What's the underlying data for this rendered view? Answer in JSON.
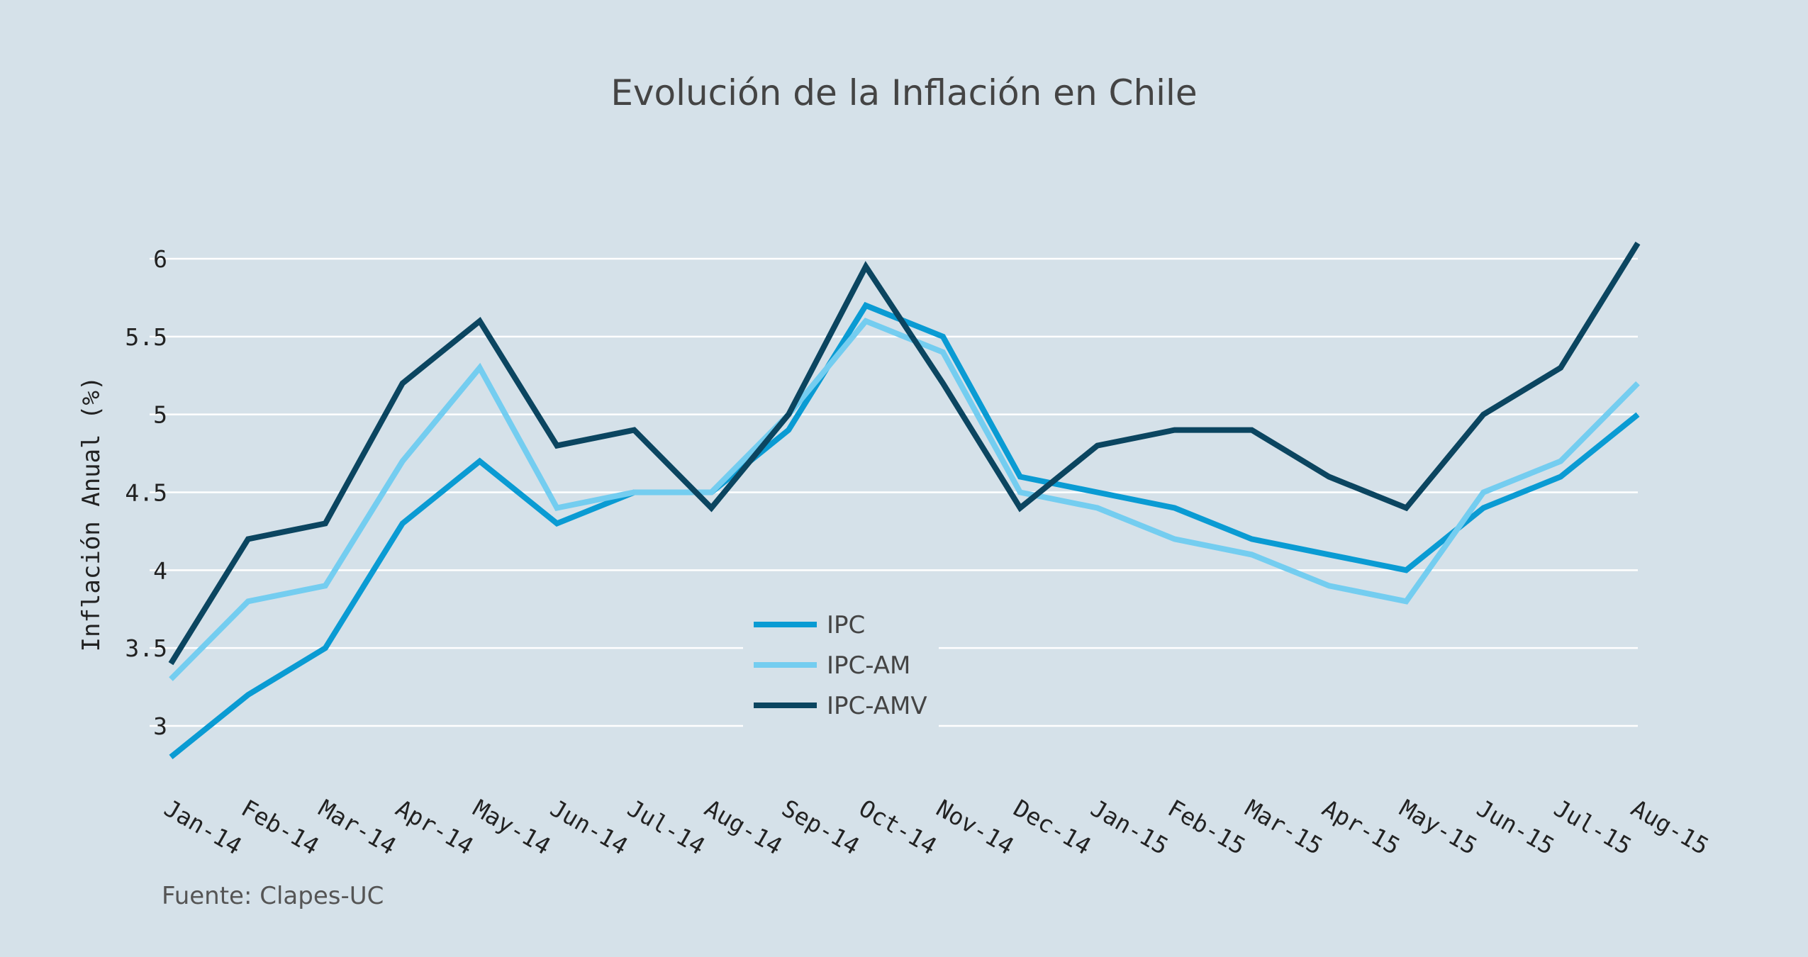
{
  "chart_data": {
    "type": "line",
    "title": "Evolución de la Inflación en Chile",
    "xlabel": "",
    "ylabel": "Inflación Anual (%)",
    "source": "Fuente: Clapes-UC",
    "categories": [
      "Jan-14",
      "Feb-14",
      "Mar-14",
      "Apr-14",
      "May-14",
      "Jun-14",
      "Jul-14",
      "Aug-14",
      "Sep-14",
      "Oct-14",
      "Nov-14",
      "Dec-14",
      "Jan-15",
      "Feb-15",
      "Mar-15",
      "Apr-15",
      "May-15",
      "Jun-15",
      "Jul-15",
      "Aug-15"
    ],
    "ylim": [
      2.7,
      6.25
    ],
    "yticks": [
      3,
      3.5,
      4,
      4.5,
      5,
      5.5,
      6
    ],
    "ytick_labels": [
      "3",
      "3.5",
      "4",
      "4.5",
      "5",
      "5.5",
      "6"
    ],
    "grid": true,
    "legend_position": "bottom-center",
    "series": [
      {
        "name": "IPC",
        "color": "#0a9bd3",
        "values": [
          2.8,
          3.2,
          3.5,
          4.3,
          4.7,
          4.3,
          4.5,
          4.5,
          4.9,
          5.7,
          5.5,
          4.6,
          4.5,
          4.4,
          4.2,
          4.1,
          4.0,
          4.4,
          4.6,
          5.0
        ]
      },
      {
        "name": "IPC-AM",
        "color": "#74cdf0",
        "values": [
          3.3,
          3.8,
          3.9,
          4.7,
          5.3,
          4.4,
          4.5,
          4.5,
          5.0,
          5.6,
          5.4,
          4.5,
          4.4,
          4.2,
          4.1,
          3.9,
          3.8,
          4.5,
          4.7,
          5.2
        ]
      },
      {
        "name": "IPC-AMV",
        "color": "#0b4560",
        "values": [
          3.4,
          4.2,
          4.3,
          5.2,
          5.6,
          4.8,
          4.9,
          4.4,
          5.0,
          5.95,
          5.2,
          4.4,
          4.8,
          4.9,
          4.9,
          4.6,
          4.4,
          5.0,
          5.3,
          6.1
        ]
      }
    ]
  }
}
